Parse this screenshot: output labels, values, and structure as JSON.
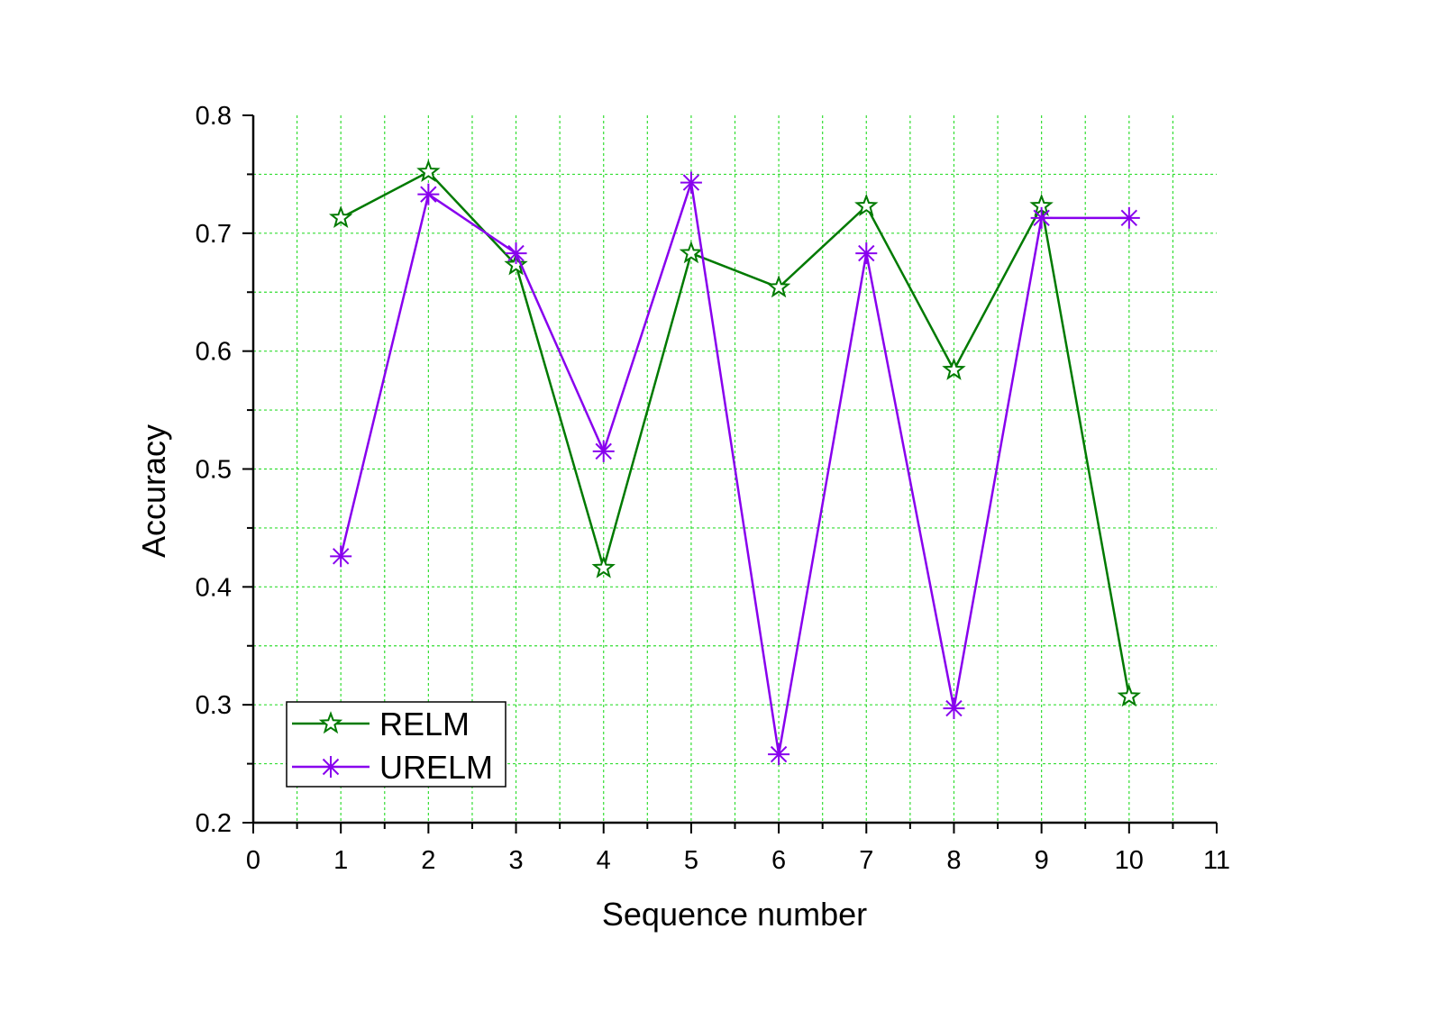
{
  "chart_data": {
    "type": "line",
    "xlabel": "Sequence number",
    "ylabel": "Accuracy",
    "xlim": [
      0,
      11
    ],
    "ylim": [
      0.2,
      0.8
    ],
    "xticks": [
      0,
      1,
      2,
      3,
      4,
      5,
      6,
      7,
      8,
      9,
      10,
      11
    ],
    "xtick_labels": [
      "0",
      "1",
      "2",
      "3",
      "4",
      "5",
      "6",
      "7",
      "8",
      "9",
      "10",
      "11"
    ],
    "yticks": [
      0.2,
      0.3,
      0.4,
      0.5,
      0.6,
      0.7,
      0.8
    ],
    "ytick_labels": [
      "0.2",
      "0.3",
      "0.4",
      "0.5",
      "0.6",
      "0.7",
      "0.8"
    ],
    "grid": true,
    "grid_color": "#33dd33",
    "legend_position": "bottom-left",
    "x": [
      1,
      2,
      3,
      4,
      5,
      6,
      7,
      8,
      9,
      10
    ],
    "series": [
      {
        "name": "RELM",
        "color": "#007a00",
        "marker": "star",
        "values": [
          0.713,
          0.752,
          0.673,
          0.416,
          0.683,
          0.654,
          0.723,
          0.584,
          0.723,
          0.307
        ]
      },
      {
        "name": "URELM",
        "color": "#8800ee",
        "marker": "asterisk",
        "values": [
          0.426,
          0.733,
          0.683,
          0.515,
          0.743,
          0.258,
          0.683,
          0.297,
          0.713,
          0.713
        ]
      }
    ]
  }
}
